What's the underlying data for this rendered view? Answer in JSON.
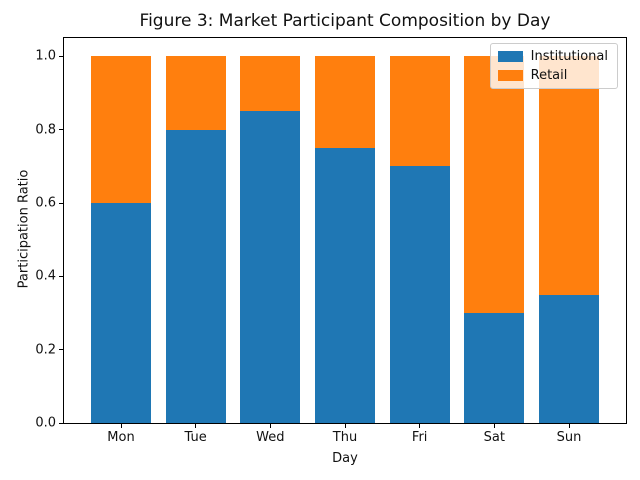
{
  "chart_data": {
    "type": "bar",
    "stacked": true,
    "title": "Figure 3: Market Participant Composition by Day",
    "xlabel": "Day",
    "ylabel": "Participation Ratio",
    "categories": [
      "Mon",
      "Tue",
      "Wed",
      "Thu",
      "Fri",
      "Sat",
      "Sun"
    ],
    "series": [
      {
        "name": "Institutional",
        "color": "#1f77b4",
        "values": [
          0.6,
          0.8,
          0.85,
          0.75,
          0.7,
          0.3,
          0.35
        ]
      },
      {
        "name": "Retail",
        "color": "#ff7f0e",
        "values": [
          0.4,
          0.2,
          0.15,
          0.25,
          0.3,
          0.7,
          0.65
        ]
      }
    ],
    "ylim": [
      0,
      1.05
    ],
    "yticks": [
      0.0,
      0.2,
      0.4,
      0.6,
      0.8,
      1.0
    ],
    "ytick_labels": [
      "0.0",
      "0.2",
      "0.4",
      "0.6",
      "0.8",
      "1.0"
    ],
    "grid": false,
    "legend_position": "upper right",
    "legend_entries": [
      "Institutional",
      "Retail"
    ]
  }
}
